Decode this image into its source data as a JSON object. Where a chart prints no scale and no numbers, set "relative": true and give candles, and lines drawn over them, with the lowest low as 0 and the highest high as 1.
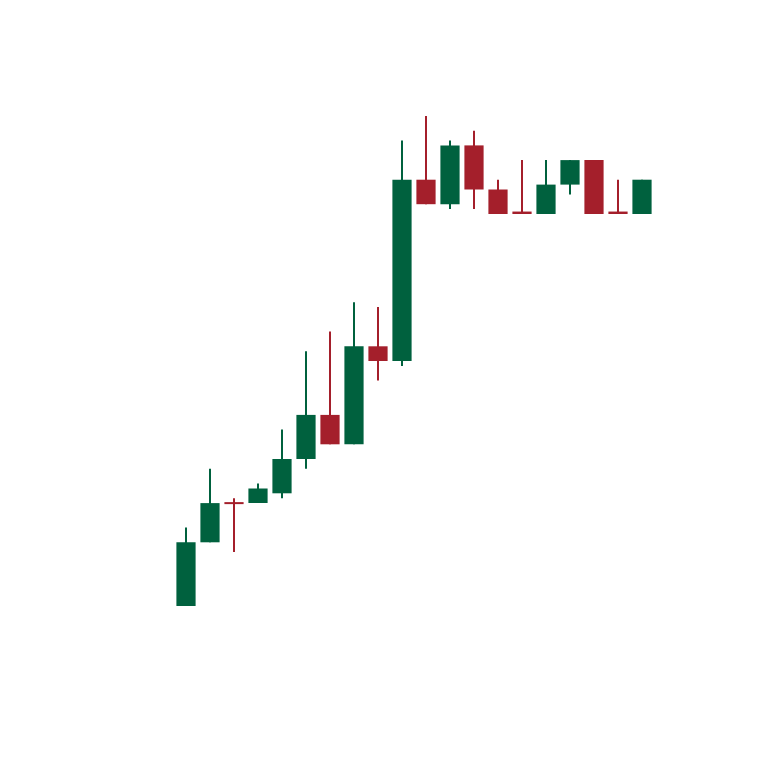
{
  "chart_data": {
    "type": "candlestick",
    "relative": true,
    "categories": [
      null,
      null,
      null,
      null,
      null,
      null,
      null,
      null,
      null,
      null,
      null,
      null,
      null,
      null,
      null,
      null,
      null,
      null,
      null,
      null
    ],
    "ohlc": [
      [
        0,
        0.16,
        0,
        0.13
      ],
      [
        0.13,
        0.28,
        0.13,
        0.21
      ],
      [
        0.212,
        0.22,
        0.11,
        0.208
      ],
      [
        0.21,
        0.25,
        0.21,
        0.24
      ],
      [
        0.23,
        0.36,
        0.22,
        0.3
      ],
      [
        0.3,
        0.52,
        0.28,
        0.39
      ],
      [
        0.39,
        0.56,
        0.33,
        0.33
      ],
      [
        0.33,
        0.62,
        0.33,
        0.53
      ],
      [
        0.53,
        0.61,
        0.46,
        0.5
      ],
      [
        0.5,
        0.95,
        0.49,
        0.87
      ],
      [
        0.87,
        1.0,
        0.82,
        0.82
      ],
      [
        0.82,
        0.95,
        0.81,
        0.94
      ],
      [
        0.94,
        0.97,
        0.81,
        0.85
      ],
      [
        0.85,
        0.87,
        0.8,
        0.8
      ],
      [
        0.805,
        0.91,
        0.8,
        0.8
      ],
      [
        0.8,
        0.91,
        0.8,
        0.86
      ],
      [
        0.86,
        0.91,
        0.84,
        0.91
      ],
      [
        0.91,
        0.91,
        0.8,
        0.8
      ],
      [
        0.805,
        0.87,
        0.8,
        0.8
      ],
      [
        0.8,
        0.87,
        0.8,
        0.87
      ]
    ],
    "colors": [
      "#00613e",
      "#00613e",
      "#a41f2b",
      "#00613e",
      "#00613e",
      "#00613e",
      "#a41f2b",
      "#00613e",
      "#a41f2b",
      "#00613e",
      "#a41f2b",
      "#00613e",
      "#a41f2b",
      "#a41f2b",
      "#a41f2b",
      "#00613e",
      "#00613e",
      "#a41f2b",
      "#a41f2b",
      "#00613e"
    ],
    "tick_labels": false
  }
}
